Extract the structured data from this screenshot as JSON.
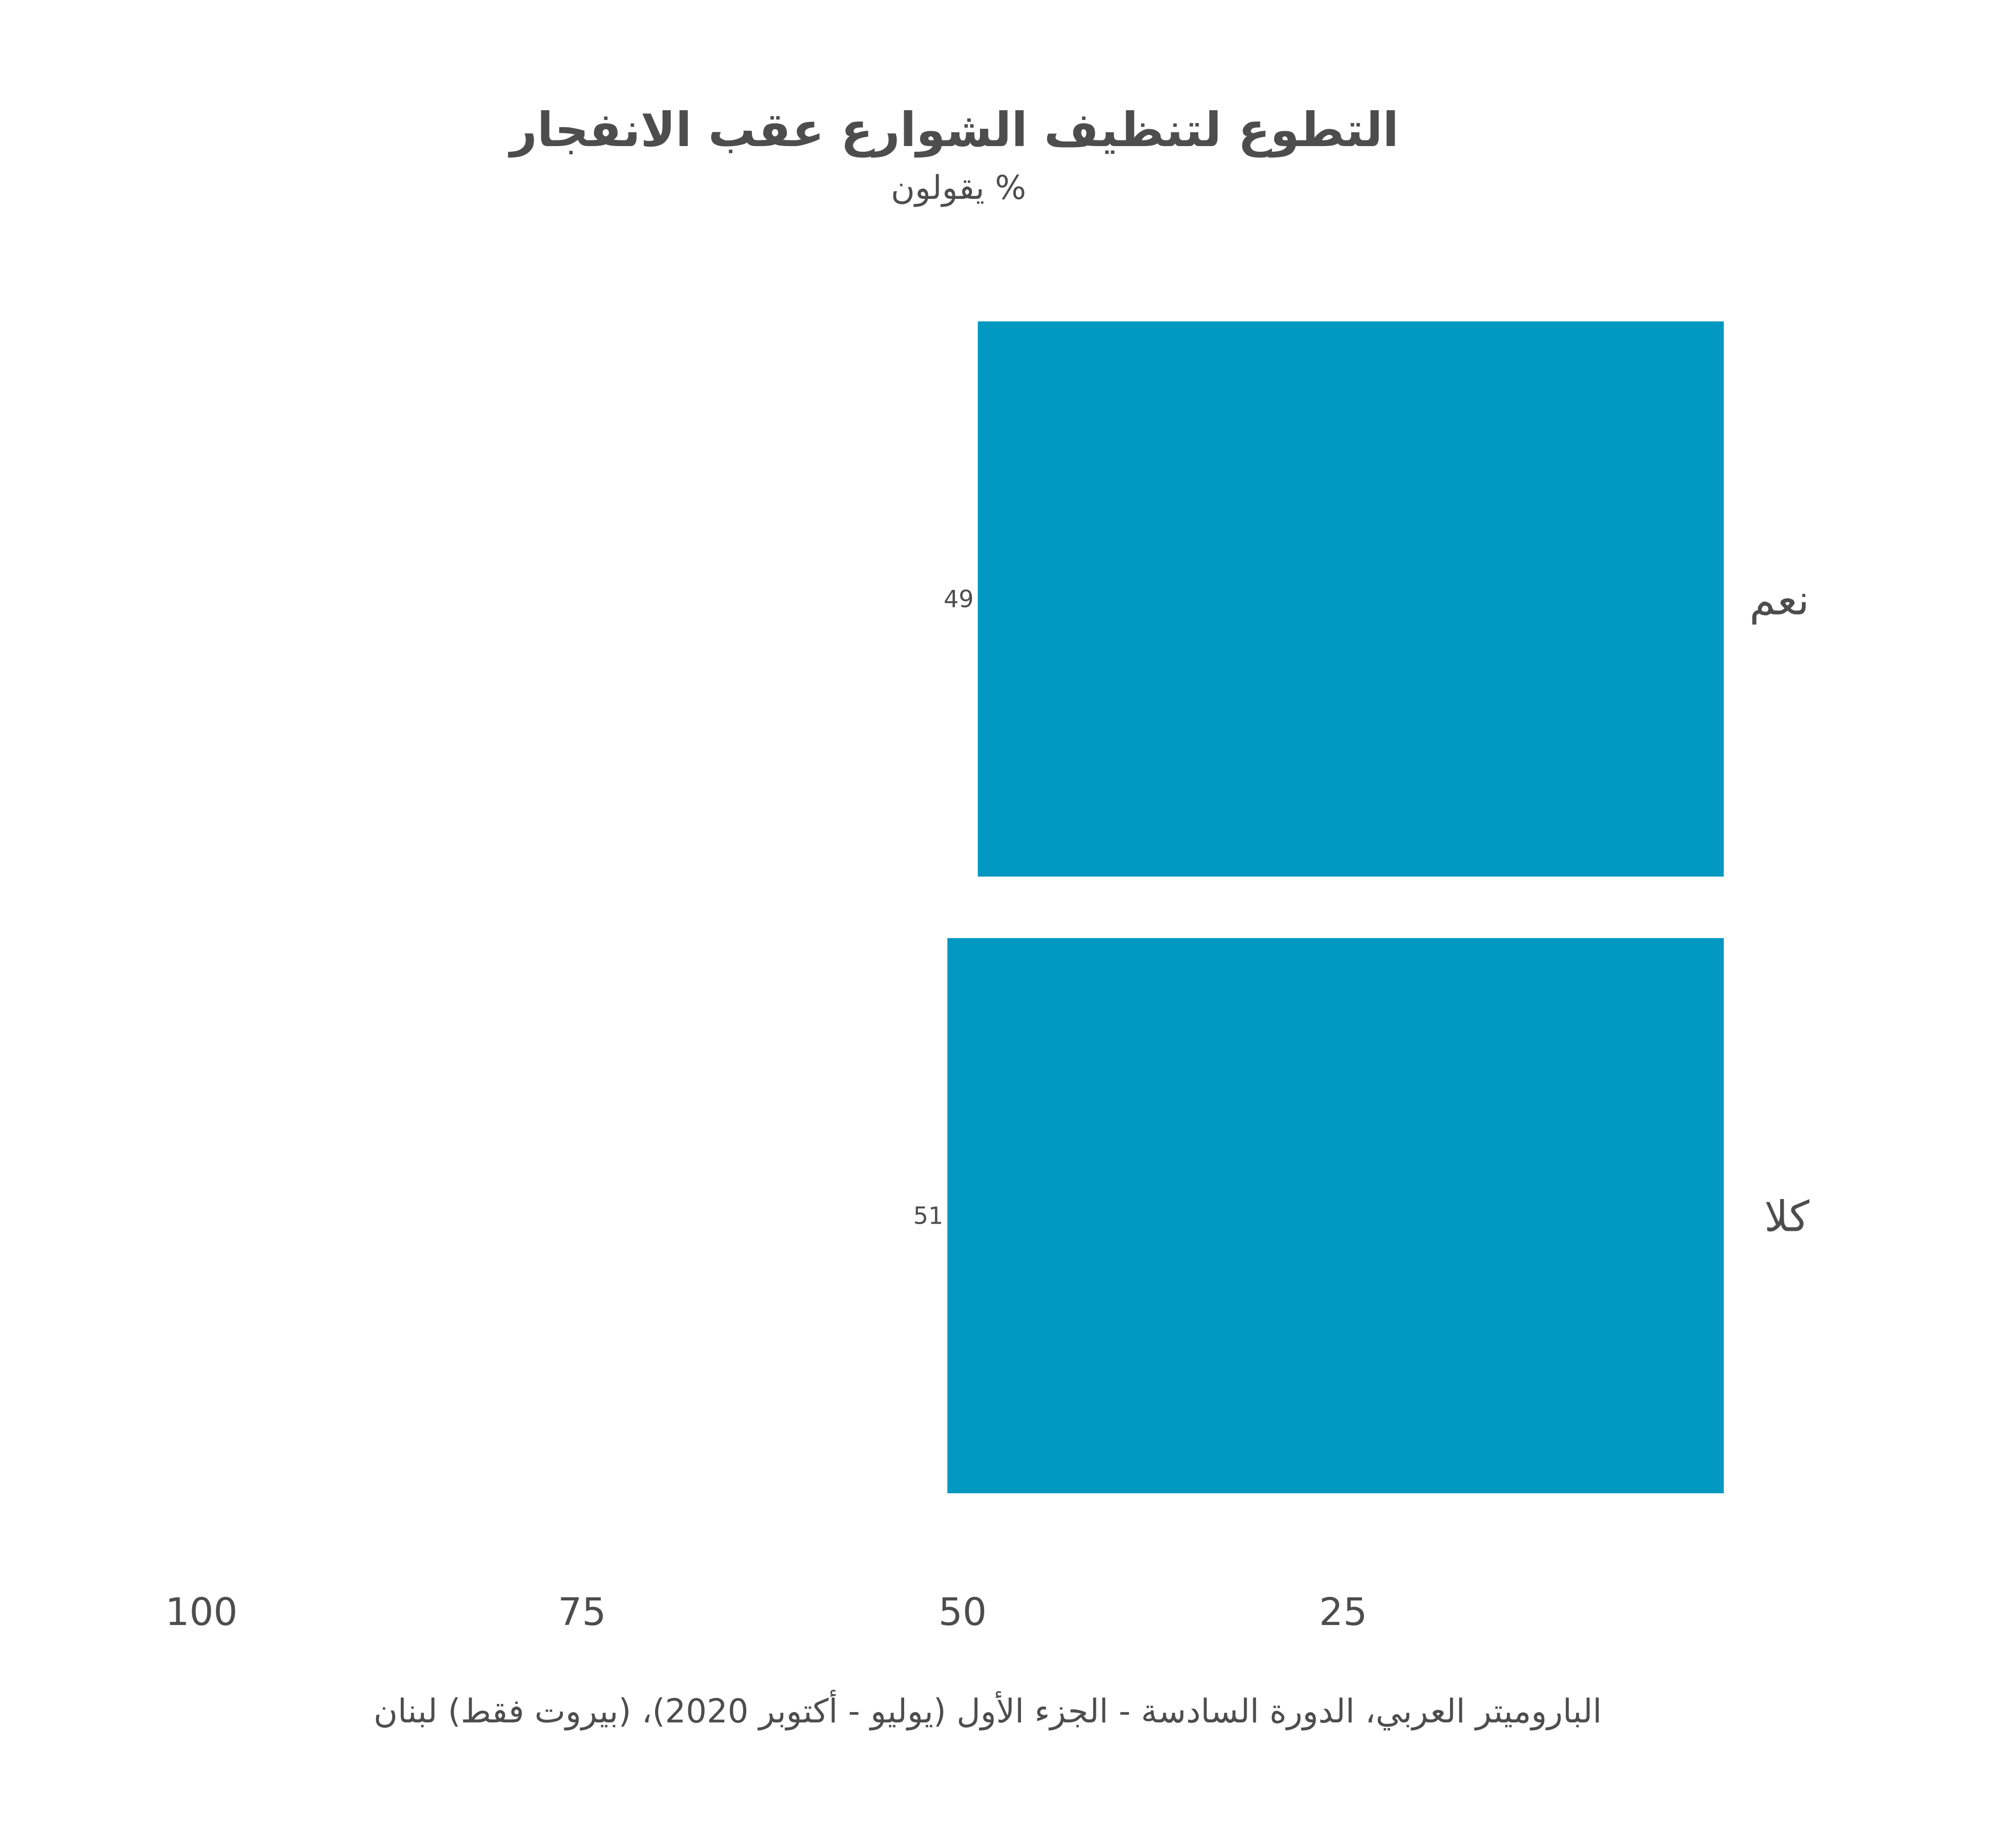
{
  "chart_data": {
    "type": "bar",
    "orientation": "horizontal",
    "title": "التطوع لتنظيف الشوارع عقب الانفجار",
    "subtitle": "% يقولون",
    "categories": [
      "نعم",
      "كلا"
    ],
    "values": [
      49,
      51
    ],
    "xlim": [
      0,
      100
    ],
    "x_reversed": true,
    "x_ticks": [
      100,
      75,
      50,
      25
    ],
    "x_tick_labels": [
      "100",
      "75",
      "50",
      "25"
    ],
    "grid": false,
    "legend": "none",
    "bar_color": "#0098c0",
    "text_color": "#4d4d4d",
    "caption": "الباروميتر العربي، الدورة السادسة - الجزء الأول (يوليو - أكتوبر 2020)، (بيروت فقط) لبنان"
  }
}
